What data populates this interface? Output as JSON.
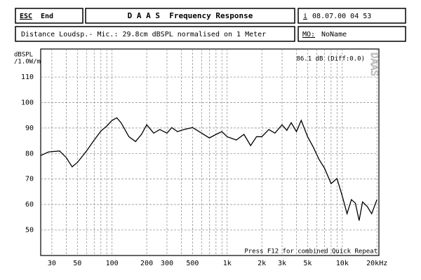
{
  "header": {
    "esc": "ESC",
    "end": "End",
    "title": "D A A S  Frequency Response",
    "info_icon": "i",
    "datetime": "08.07.00 04 53",
    "description": "Distance Loudsp.- Mic.: 29.8cm dBSPL normalised on 1 Meter",
    "mo_label": "MO:",
    "mo_value": "NoName"
  },
  "chart_data": {
    "type": "line",
    "log_x": true,
    "grid": true,
    "ylabel": [
      "dBSPL",
      "/1.0W/m"
    ],
    "annotations": [
      "86.1 dB (Diff:0.0)",
      "Press F12 for combined Quick Repeat",
      "DAAS"
    ],
    "xlim": [
      24,
      20800
    ],
    "ylim": [
      40,
      121
    ],
    "xticks": [
      30,
      50,
      100,
      200,
      300,
      500,
      {
        "value": 1000,
        "label": "1k"
      },
      {
        "value": 2000,
        "label": "2k"
      },
      {
        "value": 3000,
        "label": "3k"
      },
      {
        "value": 5000,
        "label": "5k"
      },
      {
        "value": 10000,
        "label": "10k"
      },
      {
        "value": 20000,
        "label": "20kHz"
      }
    ],
    "x_minor_ticks": [
      40,
      60,
      70,
      80,
      90,
      400,
      600,
      700,
      800,
      900,
      4000,
      6000,
      7000,
      8000,
      9000
    ],
    "yticks": [
      50,
      60,
      70,
      80,
      90,
      100,
      110
    ],
    "series": [
      {
        "color": "#000000",
        "x": [
          24,
          28,
          35,
          40,
          45,
          50,
          60,
          70,
          80,
          90,
          100,
          110,
          120,
          140,
          160,
          180,
          200,
          230,
          260,
          300,
          330,
          370,
          420,
          500,
          600,
          700,
          800,
          900,
          1000,
          1200,
          1400,
          1600,
          1800,
          2000,
          2300,
          2600,
          3000,
          3300,
          3600,
          4000,
          4400,
          5000,
          5600,
          6300,
          7000,
          8000,
          9000,
          10000,
          11000,
          12000,
          13000,
          14000,
          15000,
          16500,
          18000,
          20000
        ],
        "values": [
          79.2,
          80.6,
          81,
          78.4,
          74.8,
          76.5,
          81,
          85.3,
          88.8,
          90.8,
          93,
          94,
          92,
          86.6,
          84.7,
          87.5,
          91.3,
          88,
          89.4,
          88,
          90.2,
          88.6,
          89.4,
          90.2,
          88,
          86.1,
          87.5,
          88.6,
          86.6,
          85.3,
          87.5,
          83.1,
          86.6,
          86.6,
          89.4,
          88,
          91.3,
          89.1,
          92.1,
          88.6,
          93,
          86.6,
          82.5,
          77.6,
          74.3,
          68.2,
          70.2,
          63.3,
          56.4,
          61.9,
          60.5,
          53.7,
          61,
          59.2,
          56.4,
          61.9
        ]
      }
    ]
  }
}
